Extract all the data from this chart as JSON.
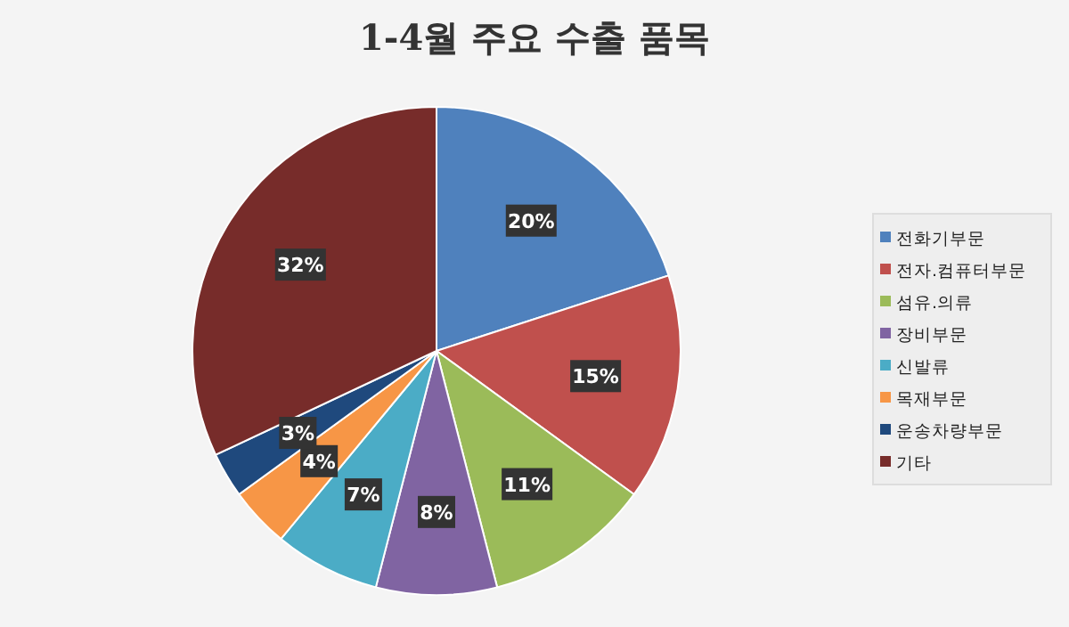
{
  "chart_data": {
    "type": "pie",
    "title": "1-4월 주요 수출 품목",
    "categories": [
      "전화기부문",
      "전자.컴퓨터부문",
      "섬유.의류",
      "장비부문",
      "신발류",
      "목재부문",
      "운송차량부문",
      "기타"
    ],
    "values": [
      20,
      15,
      11,
      8,
      7,
      4,
      3,
      32
    ],
    "colors": [
      "#4f81bd",
      "#c0504d",
      "#9bbb59",
      "#8064a2",
      "#4bacc6",
      "#f79646",
      "#1f497d",
      "#772c2a"
    ],
    "value_labels": [
      "20%",
      "15%",
      "11%",
      "8%",
      "7%",
      "4%",
      "3%",
      "32%"
    ],
    "legend": "right"
  }
}
